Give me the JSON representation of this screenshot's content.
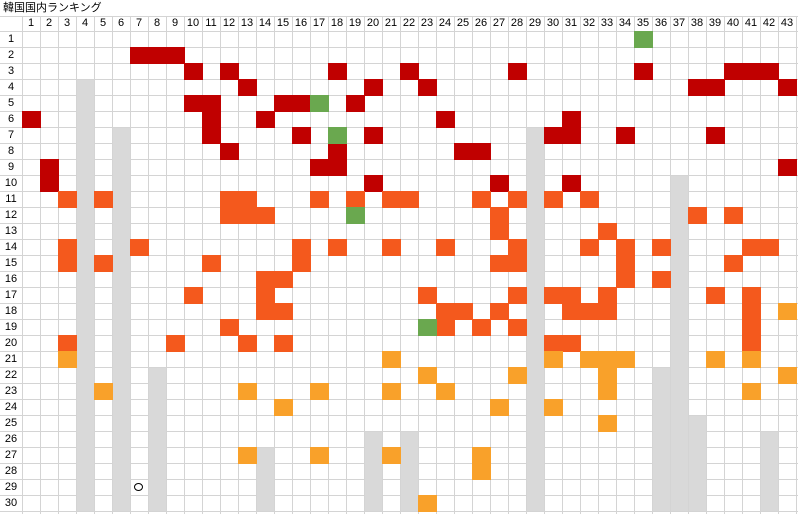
{
  "title": "韓国国内ランキング",
  "colors": {
    "dark_red": "#c00000",
    "orange": "#f4591d",
    "light_orange": "#f9a12a",
    "green": "#6aa84f",
    "gray": "#d9d9d9",
    "grid": "#d4d4d4"
  },
  "column_headers": [
    "1",
    "2",
    "3",
    "4",
    "5",
    "6",
    "7",
    "8",
    "9",
    "10",
    "11",
    "12",
    "13",
    "14",
    "15",
    "16",
    "17",
    "18",
    "19",
    "20",
    "21",
    "22",
    "23",
    "24",
    "25",
    "26",
    "27",
    "28",
    "29",
    "30",
    "31",
    "32",
    "33",
    "34",
    "35",
    "36",
    "37",
    "38",
    "39",
    "40",
    "41",
    "42",
    "43"
  ],
  "row_headers": [
    "1",
    "2",
    "3",
    "4",
    "5",
    "6",
    "7",
    "8",
    "9",
    "10",
    "11",
    "12",
    "13",
    "14",
    "15",
    "16",
    "17",
    "18",
    "19",
    "20",
    "21",
    "22",
    "23",
    "24",
    "25",
    "26",
    "27",
    "28",
    "29",
    "30"
  ],
  "cells": {
    "dark_red": [
      [
        2,
        7
      ],
      [
        2,
        8
      ],
      [
        2,
        9
      ],
      [
        3,
        10
      ],
      [
        3,
        12
      ],
      [
        3,
        18
      ],
      [
        3,
        22
      ],
      [
        3,
        28
      ],
      [
        3,
        35
      ],
      [
        3,
        40
      ],
      [
        3,
        41
      ],
      [
        3,
        42
      ],
      [
        4,
        13
      ],
      [
        4,
        20
      ],
      [
        4,
        23
      ],
      [
        4,
        38
      ],
      [
        4,
        39
      ],
      [
        4,
        43
      ],
      [
        5,
        10
      ],
      [
        5,
        11
      ],
      [
        5,
        15
      ],
      [
        5,
        16
      ],
      [
        5,
        19
      ],
      [
        6,
        1
      ],
      [
        6,
        11
      ],
      [
        6,
        14
      ],
      [
        6,
        24
      ],
      [
        6,
        31
      ],
      [
        7,
        11
      ],
      [
        7,
        16
      ],
      [
        7,
        20
      ],
      [
        7,
        30
      ],
      [
        7,
        31
      ],
      [
        7,
        34
      ],
      [
        7,
        39
      ],
      [
        8,
        12
      ],
      [
        8,
        18
      ],
      [
        8,
        25
      ],
      [
        8,
        26
      ],
      [
        9,
        2
      ],
      [
        9,
        17
      ],
      [
        9,
        18
      ],
      [
        9,
        43
      ],
      [
        10,
        2
      ],
      [
        10,
        20
      ],
      [
        10,
        27
      ],
      [
        10,
        31
      ]
    ],
    "orange": [
      [
        11,
        3
      ],
      [
        11,
        5
      ],
      [
        11,
        12
      ],
      [
        11,
        13
      ],
      [
        11,
        17
      ],
      [
        11,
        19
      ],
      [
        11,
        21
      ],
      [
        11,
        22
      ],
      [
        11,
        26
      ],
      [
        11,
        28
      ],
      [
        11,
        30
      ],
      [
        11,
        32
      ],
      [
        12,
        12
      ],
      [
        12,
        13
      ],
      [
        12,
        14
      ],
      [
        12,
        27
      ],
      [
        12,
        38
      ],
      [
        12,
        40
      ],
      [
        13,
        27
      ],
      [
        13,
        33
      ],
      [
        14,
        3
      ],
      [
        14,
        7
      ],
      [
        14,
        16
      ],
      [
        14,
        18
      ],
      [
        14,
        21
      ],
      [
        14,
        24
      ],
      [
        14,
        28
      ],
      [
        14,
        32
      ],
      [
        14,
        34
      ],
      [
        14,
        36
      ],
      [
        14,
        41
      ],
      [
        14,
        42
      ],
      [
        15,
        3
      ],
      [
        15,
        5
      ],
      [
        15,
        11
      ],
      [
        15,
        16
      ],
      [
        15,
        27
      ],
      [
        15,
        28
      ],
      [
        15,
        34
      ],
      [
        15,
        40
      ],
      [
        16,
        14
      ],
      [
        16,
        15
      ],
      [
        16,
        34
      ],
      [
        16,
        36
      ],
      [
        17,
        10
      ],
      [
        17,
        14
      ],
      [
        17,
        23
      ],
      [
        17,
        28
      ],
      [
        17,
        30
      ],
      [
        17,
        31
      ],
      [
        17,
        33
      ],
      [
        17,
        39
      ],
      [
        17,
        41
      ],
      [
        18,
        14
      ],
      [
        18,
        15
      ],
      [
        18,
        24
      ],
      [
        18,
        25
      ],
      [
        18,
        27
      ],
      [
        18,
        31
      ],
      [
        18,
        32
      ],
      [
        18,
        33
      ],
      [
        18,
        41
      ],
      [
        19,
        12
      ],
      [
        19,
        24
      ],
      [
        19,
        26
      ],
      [
        19,
        28
      ],
      [
        19,
        41
      ],
      [
        20,
        3
      ],
      [
        20,
        9
      ],
      [
        20,
        13
      ],
      [
        20,
        15
      ],
      [
        20,
        30
      ],
      [
        20,
        31
      ],
      [
        20,
        41
      ]
    ],
    "light_orange": [
      [
        18,
        43
      ],
      [
        21,
        3
      ],
      [
        21,
        21
      ],
      [
        21,
        30
      ],
      [
        21,
        32
      ],
      [
        21,
        33
      ],
      [
        21,
        34
      ],
      [
        21,
        39
      ],
      [
        21,
        41
      ],
      [
        22,
        23
      ],
      [
        22,
        28
      ],
      [
        22,
        33
      ],
      [
        22,
        43
      ],
      [
        23,
        5
      ],
      [
        23,
        13
      ],
      [
        23,
        17
      ],
      [
        23,
        21
      ],
      [
        23,
        24
      ],
      [
        23,
        33
      ],
      [
        23,
        41
      ],
      [
        24,
        15
      ],
      [
        24,
        27
      ],
      [
        24,
        30
      ],
      [
        25,
        33
      ],
      [
        27,
        13
      ],
      [
        27,
        17
      ],
      [
        27,
        21
      ],
      [
        27,
        26
      ],
      [
        28,
        26
      ],
      [
        30,
        23
      ]
    ],
    "green": [
      [
        1,
        35
      ],
      [
        5,
        17
      ],
      [
        7,
        18
      ],
      [
        12,
        19
      ],
      [
        19,
        23
      ]
    ],
    "gray_columns": [
      {
        "col": 4,
        "from": 4,
        "to": 30
      },
      {
        "col": 6,
        "from": 7,
        "to": 30
      },
      {
        "col": 8,
        "from": 22,
        "to": 30
      },
      {
        "col": 14,
        "from": 27,
        "to": 30
      },
      {
        "col": 20,
        "from": 26,
        "to": 30
      },
      {
        "col": 22,
        "from": 26,
        "to": 30
      },
      {
        "col": 29,
        "from": 7,
        "to": 30
      },
      {
        "col": 36,
        "from": 22,
        "to": 30
      },
      {
        "col": 37,
        "from": 10,
        "to": 30
      },
      {
        "col": 38,
        "from": 25,
        "to": 30
      },
      {
        "col": 42,
        "from": 26,
        "to": 30
      }
    ]
  },
  "markers": [
    {
      "row": 29,
      "col": 7,
      "shape": "circle"
    }
  ]
}
